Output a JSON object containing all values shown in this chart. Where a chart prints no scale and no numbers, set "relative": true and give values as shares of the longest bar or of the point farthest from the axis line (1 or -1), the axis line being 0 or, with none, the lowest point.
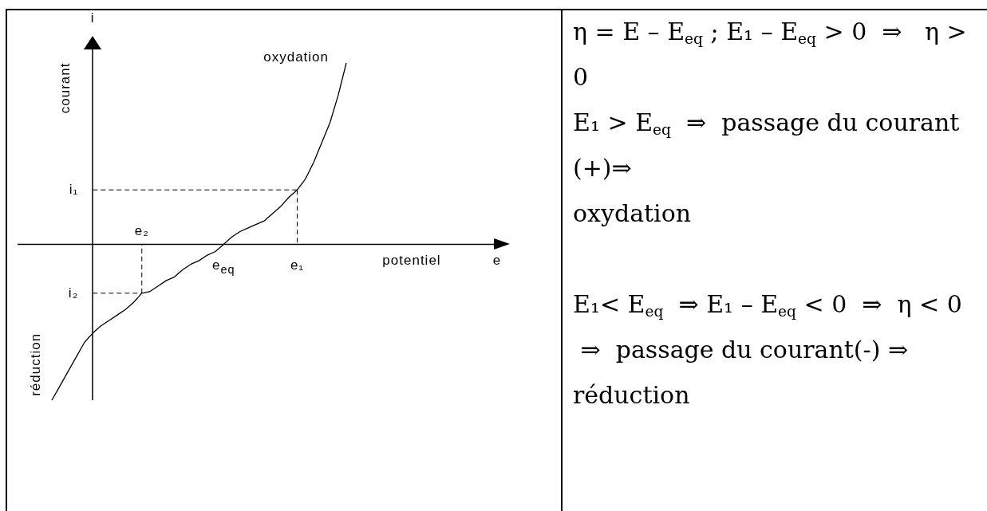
{
  "chart_data": [
    {
      "type": "line",
      "relative": true,
      "xlabel": "potentiel",
      "ylabel": "courant",
      "marker": "none",
      "annotations": [
        "i",
        "e",
        "oxydation",
        "réduction"
      ],
      "categories": [
        null,
        null,
        null,
        null,
        null,
        null,
        null,
        null,
        null,
        null,
        null,
        null,
        null,
        null,
        null,
        "e₂",
        null,
        null,
        null,
        null,
        null,
        null,
        null,
        null,
        null,
        "e$_{eq}$",
        null,
        null,
        null,
        null,
        null,
        null,
        null,
        null,
        "e₁",
        null,
        null,
        null,
        null,
        null,
        null,
        null,
        null,
        null,
        null,
        null,
        null,
        null,
        null,
        null,
        null,
        null,
        null,
        null,
        null,
        null,
        null,
        null,
        null,
        null,
        null
      ],
      "series": [
        {
          "color": "#000000",
          "values": [
            null,
            null,
            null,
            null,
            -0.86,
            -0.78,
            -0.7,
            -0.62,
            -0.54,
            -0.49,
            -0.45,
            -0.42,
            -0.39,
            -0.36,
            -0.32,
            -0.27,
            -0.26,
            -0.23,
            -0.2,
            -0.18,
            -0.14,
            -0.11,
            -0.09,
            -0.06,
            -0.04,
            0,
            0.04,
            0.07,
            0.09,
            0.11,
            0.13,
            0.17,
            0.21,
            0.26,
            0.3,
            0.36,
            0.45,
            0.56,
            0.67,
            0.82,
            1,
            null,
            null,
            null,
            null,
            null,
            null,
            null,
            null,
            null,
            null,
            null,
            null,
            null,
            null,
            null,
            null,
            null,
            null,
            null,
            null
          ]
        },
        {
          "name": "i₁",
          "color": "#000000",
          "line_style": "dashed",
          "values": [
            null,
            null,
            null,
            null,
            null,
            null,
            null,
            null,
            null,
            0.3,
            0.3,
            0.3,
            0.3,
            0.3,
            0.3,
            0.3,
            0.3,
            0.3,
            0.3,
            0.3,
            0.3,
            0.3,
            0.3,
            0.3,
            0.3,
            0.3,
            0.3,
            0.3,
            0.3,
            0.3,
            0.3,
            0.3,
            0.3,
            0.3,
            0.3,
            null,
            null,
            null,
            null,
            null,
            null,
            null,
            null,
            null,
            null,
            null,
            null,
            null,
            null,
            null,
            null,
            null,
            null,
            null,
            null,
            null,
            null,
            null,
            null,
            null,
            null
          ]
        },
        {
          "color": "#000000",
          "line_style": "dashed",
          "x": [
            "e₁",
            "e₁"
          ],
          "values": [
            0.3,
            0
          ]
        },
        {
          "name": "i₂",
          "color": "#000000",
          "line_style": "dashed",
          "values": [
            null,
            null,
            null,
            null,
            null,
            null,
            null,
            null,
            null,
            -0.27,
            -0.27,
            -0.27,
            -0.27,
            -0.27,
            -0.27,
            -0.27,
            null,
            null,
            null,
            null,
            null,
            null,
            null,
            null,
            null,
            null,
            null,
            null,
            null,
            null,
            null,
            null,
            null,
            null,
            null,
            null,
            null,
            null,
            null,
            null,
            null,
            null,
            null,
            null,
            null,
            null,
            null,
            null,
            null,
            null,
            null,
            null,
            null,
            null,
            null,
            null,
            null,
            null,
            null,
            null,
            null
          ]
        },
        {
          "color": "#000000",
          "line_style": "dashed",
          "x": [
            "e₂",
            "e₂"
          ],
          "values": [
            -0.27,
            0
          ]
        }
      ]
    },
    {
      "type": "other",
      "annotations": [
        "η = E – E$_{eq}$ ; E₁ – E$_{eq}$ > 0  ⇒   η >\n0\nE₁ > E$_{eq}$  ⇒  passage du courant\n(+)⇒\noxydation\n\nE₁< E$_{eq}$  ⇒ E₁ – E$_{eq}$ < 0  ⇒  η < 0\n ⇒  passage du courant(-) ⇒\nréduction"
      ]
    }
  ]
}
